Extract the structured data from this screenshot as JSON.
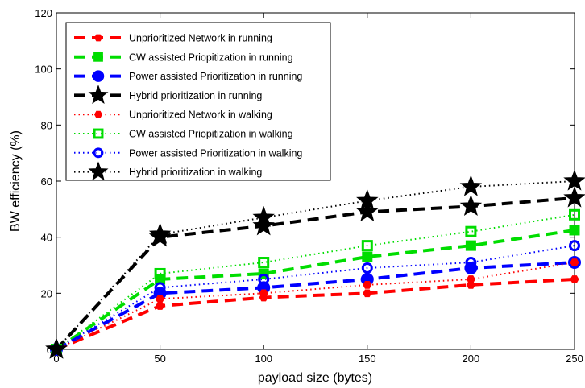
{
  "chart_data": {
    "type": "line",
    "title": "",
    "xlabel": "payload size (bytes)",
    "ylabel": "BW efficiency (%)",
    "xlim": [
      0,
      250
    ],
    "ylim": [
      0,
      120
    ],
    "xticks": [
      0,
      50,
      100,
      150,
      200,
      250
    ],
    "yticks": [
      0,
      20,
      40,
      60,
      80,
      100,
      120
    ],
    "grid": false,
    "legend_position": "top-left",
    "x": [
      0,
      50,
      100,
      150,
      200,
      250
    ],
    "series": [
      {
        "name": "Unprioritized Network in running",
        "color": "#ff0000",
        "line": "dashed",
        "marker": "hex",
        "values": [
          0,
          15.5,
          18.5,
          20,
          23,
          25
        ]
      },
      {
        "name": "CW assisted Priopitization in running",
        "color": "#00dd00",
        "line": "dashed",
        "marker": "square",
        "values": [
          0,
          25,
          27,
          33,
          37,
          42.5
        ]
      },
      {
        "name": "Power assisted Prioritization in running",
        "color": "#0000ff",
        "line": "dashed",
        "marker": "circle",
        "values": [
          0,
          20,
          22,
          25,
          29,
          31
        ]
      },
      {
        "name": "Hybrid prioritization in running",
        "color": "#000000",
        "line": "dashed",
        "marker": "star",
        "values": [
          0,
          40,
          44,
          49,
          51,
          54
        ]
      },
      {
        "name": "Unprioritized Network in walking",
        "color": "#ff0000",
        "line": "dotted",
        "marker": "hex",
        "values": [
          0,
          18,
          20,
          23,
          25,
          31
        ]
      },
      {
        "name": "CW assisted Priopitization in walking",
        "color": "#00dd00",
        "line": "dotted",
        "marker": "square-open",
        "values": [
          0,
          27,
          31,
          37,
          42,
          48
        ]
      },
      {
        "name": "Power assisted Prioritization in walking",
        "color": "#0000ff",
        "line": "dotted",
        "marker": "circle-open",
        "values": [
          0,
          22,
          25,
          29,
          31,
          37
        ]
      },
      {
        "name": "Hybrid prioritization in walking",
        "color": "#000000",
        "line": "dotted",
        "marker": "star",
        "values": [
          0,
          41,
          47,
          53,
          58,
          60
        ]
      }
    ]
  }
}
